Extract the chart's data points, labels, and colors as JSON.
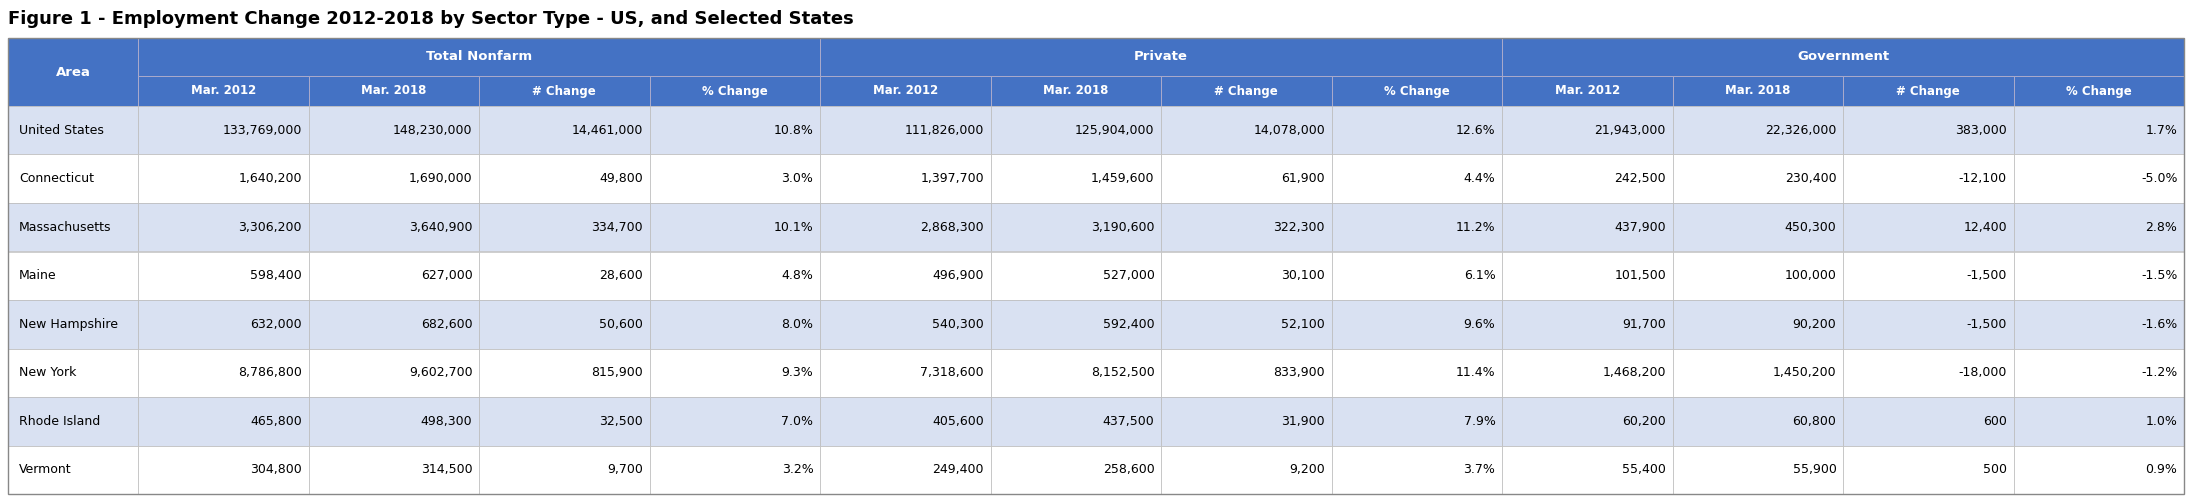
{
  "title": "Figure 1 - Employment Change 2012-2018 by Sector Type - US, and Selected States",
  "header_groups": [
    "Total Nonfarm",
    "Private",
    "Government"
  ],
  "sub_headers": [
    "Mar. 2012",
    "Mar. 2018",
    "# Change",
    "% Change"
  ],
  "col1_header": "Area",
  "areas": [
    "United States",
    "Connecticut",
    "Massachusetts",
    "Maine",
    "New Hampshire",
    "New York",
    "Rhode Island",
    "Vermont"
  ],
  "data": [
    [
      "133,769,000",
      "148,230,000",
      "14,461,000",
      "10.8%",
      "111,826,000",
      "125,904,000",
      "14,078,000",
      "12.6%",
      "21,943,000",
      "22,326,000",
      "383,000",
      "1.7%"
    ],
    [
      "1,640,200",
      "1,690,000",
      "49,800",
      "3.0%",
      "1,397,700",
      "1,459,600",
      "61,900",
      "4.4%",
      "242,500",
      "230,400",
      "-12,100",
      "-5.0%"
    ],
    [
      "3,306,200",
      "3,640,900",
      "334,700",
      "10.1%",
      "2,868,300",
      "3,190,600",
      "322,300",
      "11.2%",
      "437,900",
      "450,300",
      "12,400",
      "2.8%"
    ],
    [
      "598,400",
      "627,000",
      "28,600",
      "4.8%",
      "496,900",
      "527,000",
      "30,100",
      "6.1%",
      "101,500",
      "100,000",
      "-1,500",
      "-1.5%"
    ],
    [
      "632,000",
      "682,600",
      "50,600",
      "8.0%",
      "540,300",
      "592,400",
      "52,100",
      "9.6%",
      "91,700",
      "90,200",
      "-1,500",
      "-1.6%"
    ],
    [
      "8,786,800",
      "9,602,700",
      "815,900",
      "9.3%",
      "7,318,600",
      "8,152,500",
      "833,900",
      "11.4%",
      "1,468,200",
      "1,450,200",
      "-18,000",
      "-1.2%"
    ],
    [
      "465,800",
      "498,300",
      "32,500",
      "7.0%",
      "405,600",
      "437,500",
      "31,900",
      "7.9%",
      "60,200",
      "60,800",
      "600",
      "1.0%"
    ],
    [
      "304,800",
      "314,500",
      "9,700",
      "3.2%",
      "249,400",
      "258,600",
      "9,200",
      "3.7%",
      "55,400",
      "55,900",
      "500",
      "0.9%"
    ]
  ],
  "header_bg": "#4472C4",
  "header_text": "#FFFFFF",
  "row_bg_even": "#D9E1F2",
  "row_bg_odd": "#FFFFFF",
  "cell_text": "#000000",
  "title_fontsize": 13,
  "header_fontsize": 9.5,
  "subheader_fontsize": 8.5,
  "cell_fontsize": 9.0,
  "area_fontsize": 9.0
}
